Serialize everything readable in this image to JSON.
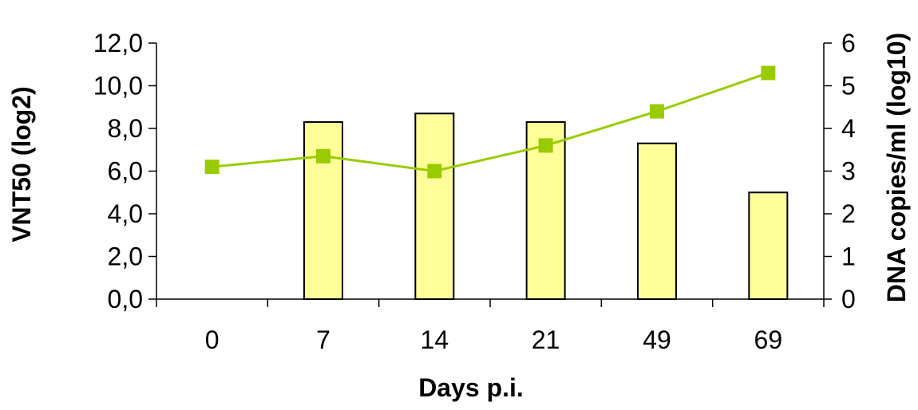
{
  "chart_data": {
    "type": "bar+line",
    "categories": [
      "0",
      "7",
      "14",
      "21",
      "49",
      "69"
    ],
    "xlabel": "Days p.i.",
    "series": [
      {
        "name": "",
        "type": "bar",
        "axis": "left",
        "values": [
          0,
          8.3,
          8.7,
          8.3,
          7.3,
          5.0
        ],
        "color": "#ffff99",
        "edge_color": "#000000"
      },
      {
        "name": "",
        "type": "line",
        "axis": "right",
        "values": [
          3.1,
          3.35,
          3.0,
          3.6,
          4.4,
          5.3
        ],
        "color": "#99cc00",
        "marker": "square"
      }
    ],
    "left_axis": {
      "label": "VNT50 (log2)",
      "ylim": [
        0,
        12
      ],
      "ticks": [
        "0,0",
        "2,0",
        "4,0",
        "6,0",
        "8,0",
        "10,0",
        "12,0"
      ]
    },
    "right_axis": {
      "label": "DNA copies/ml (log10)",
      "ylim": [
        0,
        6
      ],
      "ticks": [
        "0",
        "1",
        "2",
        "3",
        "4",
        "5",
        "6"
      ]
    },
    "grid": false,
    "legend": "none"
  }
}
